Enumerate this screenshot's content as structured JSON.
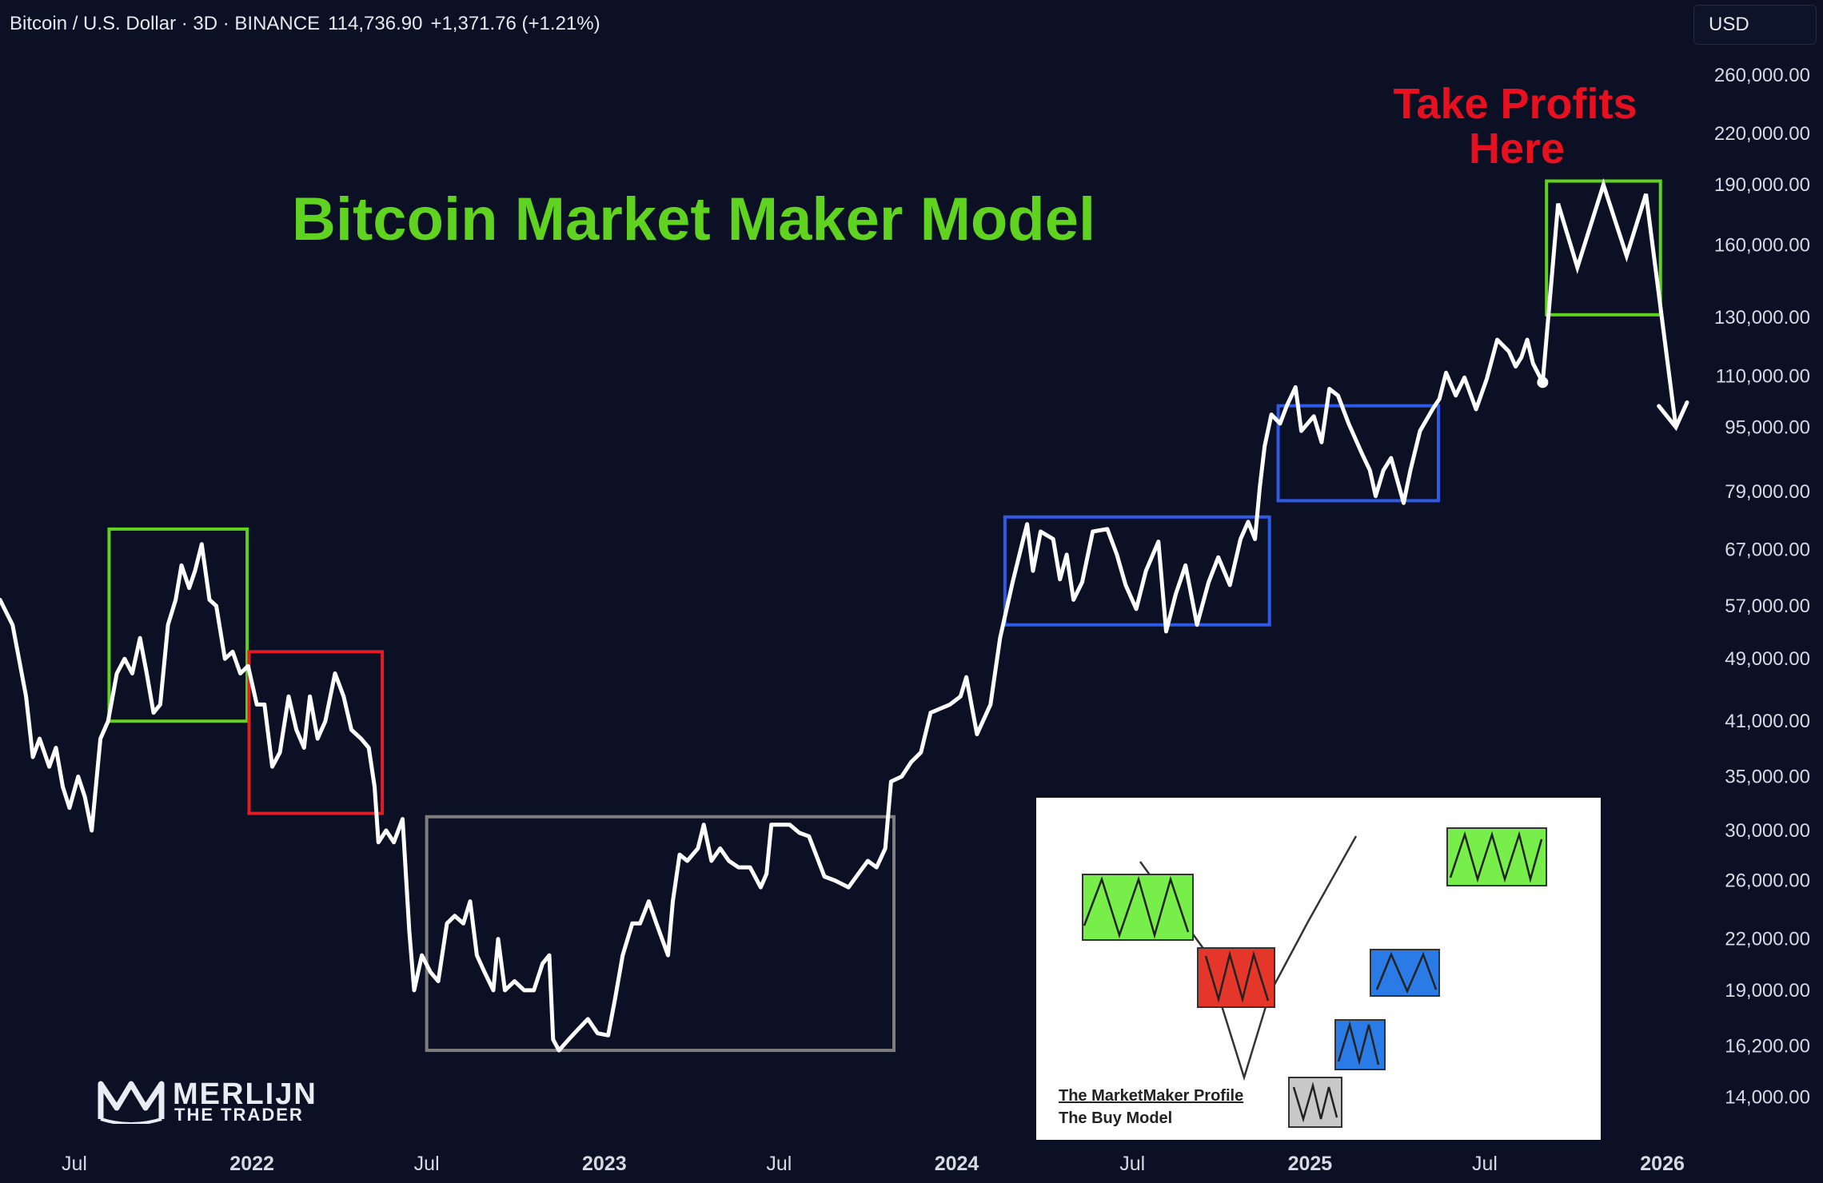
{
  "header": {
    "symbol": "Bitcoin / U.S. Dollar · 3D · BINANCE",
    "price": "114,736.90",
    "change": "+1,371.76 (+1.21%)"
  },
  "currency_button": "USD",
  "logo": {
    "line1": "MERLIJN",
    "line2": "THE TRADER",
    "icon": "merlijn-logo-icon"
  },
  "inset": {
    "caption1": "The MarketMaker Profile",
    "caption2": "The Buy Model"
  },
  "chart_data": {
    "type": "line",
    "title": "Bitcoin Market Maker Model",
    "y_scale": "log",
    "ylim": [
      12000,
      290000
    ],
    "xlim": [
      "2021-04-15",
      "2026-01-15"
    ],
    "y_ticks": [
      {
        "value": 260000,
        "label": "260,000.00"
      },
      {
        "value": 220000,
        "label": "220,000.00"
      },
      {
        "value": 190000,
        "label": "190,000.00"
      },
      {
        "value": 160000,
        "label": "160,000.00"
      },
      {
        "value": 130000,
        "label": "130,000.00"
      },
      {
        "value": 110000,
        "label": "110,000.00"
      },
      {
        "value": 95000,
        "label": "95,000.00"
      },
      {
        "value": 79000,
        "label": "79,000.00"
      },
      {
        "value": 67000,
        "label": "67,000.00"
      },
      {
        "value": 57000,
        "label": "57,000.00"
      },
      {
        "value": 49000,
        "label": "49,000.00"
      },
      {
        "value": 41000,
        "label": "41,000.00"
      },
      {
        "value": 35000,
        "label": "35,000.00"
      },
      {
        "value": 30000,
        "label": "30,000.00"
      },
      {
        "value": 26000,
        "label": "26,000.00"
      },
      {
        "value": 22000,
        "label": "22,000.00"
      },
      {
        "value": 19000,
        "label": "19,000.00"
      },
      {
        "value": 16200,
        "label": "16,200.00"
      },
      {
        "value": 14000,
        "label": "14,000.00"
      }
    ],
    "x_ticks": [
      {
        "value": "2021-07-01",
        "label": "Jul"
      },
      {
        "value": "2022-01-01",
        "label": "2022"
      },
      {
        "value": "2022-07-01",
        "label": "Jul"
      },
      {
        "value": "2023-01-01",
        "label": "2023"
      },
      {
        "value": "2023-07-01",
        "label": "Jul"
      },
      {
        "value": "2024-01-01",
        "label": "2024"
      },
      {
        "value": "2024-07-01",
        "label": "Jul"
      },
      {
        "value": "2025-01-01",
        "label": "2025"
      },
      {
        "value": "2025-07-01",
        "label": "Jul"
      },
      {
        "value": "2026-01-01",
        "label": "2026"
      }
    ],
    "series": [
      {
        "color": "#ffffff",
        "points": [
          [
            "2021-04-15",
            58000
          ],
          [
            "2021-04-28",
            54000
          ],
          [
            "2021-05-12",
            44000
          ],
          [
            "2021-05-19",
            37000
          ],
          [
            "2021-05-26",
            39000
          ],
          [
            "2021-06-05",
            36000
          ],
          [
            "2021-06-12",
            38000
          ],
          [
            "2021-06-19",
            34000
          ],
          [
            "2021-06-26",
            32000
          ],
          [
            "2021-07-05",
            35000
          ],
          [
            "2021-07-12",
            33000
          ],
          [
            "2021-07-19",
            30000
          ],
          [
            "2021-07-28",
            39000
          ],
          [
            "2021-08-05",
            41000
          ],
          [
            "2021-08-14",
            47000
          ],
          [
            "2021-08-22",
            49000
          ],
          [
            "2021-08-30",
            47000
          ],
          [
            "2021-09-07",
            52000
          ],
          [
            "2021-09-14",
            47000
          ],
          [
            "2021-09-21",
            42000
          ],
          [
            "2021-09-28",
            43000
          ],
          [
            "2021-10-06",
            54000
          ],
          [
            "2021-10-14",
            58000
          ],
          [
            "2021-10-20",
            64000
          ],
          [
            "2021-10-28",
            60000
          ],
          [
            "2021-11-03",
            63000
          ],
          [
            "2021-11-10",
            68000
          ],
          [
            "2021-11-18",
            58000
          ],
          [
            "2021-11-25",
            57000
          ],
          [
            "2021-12-04",
            49000
          ],
          [
            "2021-12-12",
            50000
          ],
          [
            "2021-12-20",
            47000
          ],
          [
            "2021-12-28",
            48000
          ],
          [
            "2022-01-06",
            43000
          ],
          [
            "2022-01-14",
            43000
          ],
          [
            "2022-01-22",
            36000
          ],
          [
            "2022-01-30",
            37500
          ],
          [
            "2022-02-08",
            44000
          ],
          [
            "2022-02-16",
            40000
          ],
          [
            "2022-02-24",
            38000
          ],
          [
            "2022-03-02",
            44000
          ],
          [
            "2022-03-10",
            39000
          ],
          [
            "2022-03-18",
            41000
          ],
          [
            "2022-03-28",
            47000
          ],
          [
            "2022-04-06",
            44000
          ],
          [
            "2022-04-14",
            40000
          ],
          [
            "2022-04-24",
            39000
          ],
          [
            "2022-05-02",
            38000
          ],
          [
            "2022-05-08",
            34000
          ],
          [
            "2022-05-12",
            29000
          ],
          [
            "2022-05-20",
            30000
          ],
          [
            "2022-05-28",
            29000
          ],
          [
            "2022-06-06",
            31000
          ],
          [
            "2022-06-13",
            22500
          ],
          [
            "2022-06-18",
            19000
          ],
          [
            "2022-06-26",
            21000
          ],
          [
            "2022-07-05",
            20000
          ],
          [
            "2022-07-13",
            19500
          ],
          [
            "2022-07-22",
            23000
          ],
          [
            "2022-07-30",
            23500
          ],
          [
            "2022-08-08",
            23000
          ],
          [
            "2022-08-15",
            24500
          ],
          [
            "2022-08-22",
            21000
          ],
          [
            "2022-08-30",
            20000
          ],
          [
            "2022-09-08",
            19000
          ],
          [
            "2022-09-13",
            22000
          ],
          [
            "2022-09-20",
            19000
          ],
          [
            "2022-09-30",
            19500
          ],
          [
            "2022-10-10",
            19000
          ],
          [
            "2022-10-20",
            19000
          ],
          [
            "2022-10-29",
            20500
          ],
          [
            "2022-11-05",
            21000
          ],
          [
            "2022-11-09",
            16500
          ],
          [
            "2022-11-15",
            16000
          ],
          [
            "2022-11-25",
            16500
          ],
          [
            "2022-12-05",
            17000
          ],
          [
            "2022-12-15",
            17500
          ],
          [
            "2022-12-25",
            16800
          ],
          [
            "2023-01-05",
            16700
          ],
          [
            "2023-01-12",
            18500
          ],
          [
            "2023-01-20",
            21000
          ],
          [
            "2023-01-30",
            23000
          ],
          [
            "2023-02-07",
            23000
          ],
          [
            "2023-02-16",
            24500
          ],
          [
            "2023-02-24",
            23000
          ],
          [
            "2023-03-08",
            21000
          ],
          [
            "2023-03-13",
            24500
          ],
          [
            "2023-03-20",
            28000
          ],
          [
            "2023-03-28",
            27500
          ],
          [
            "2023-04-08",
            28500
          ],
          [
            "2023-04-14",
            30500
          ],
          [
            "2023-04-22",
            27500
          ],
          [
            "2023-05-01",
            28500
          ],
          [
            "2023-05-10",
            27500
          ],
          [
            "2023-05-20",
            27000
          ],
          [
            "2023-06-01",
            27000
          ],
          [
            "2023-06-12",
            25500
          ],
          [
            "2023-06-18",
            26500
          ],
          [
            "2023-06-23",
            30500
          ],
          [
            "2023-07-01",
            30500
          ],
          [
            "2023-07-12",
            30500
          ],
          [
            "2023-07-22",
            29800
          ],
          [
            "2023-08-01",
            29500
          ],
          [
            "2023-08-17",
            26300
          ],
          [
            "2023-08-28",
            26000
          ],
          [
            "2023-09-11",
            25500
          ],
          [
            "2023-09-21",
            26500
          ],
          [
            "2023-10-01",
            27500
          ],
          [
            "2023-10-10",
            27000
          ],
          [
            "2023-10-19",
            28500
          ],
          [
            "2023-10-25",
            34500
          ],
          [
            "2023-11-05",
            35000
          ],
          [
            "2023-11-15",
            36500
          ],
          [
            "2023-11-25",
            37500
          ],
          [
            "2023-12-05",
            42000
          ],
          [
            "2023-12-15",
            42500
          ],
          [
            "2023-12-25",
            43000
          ],
          [
            "2024-01-05",
            44000
          ],
          [
            "2024-01-11",
            46500
          ],
          [
            "2024-01-22",
            39500
          ],
          [
            "2024-02-05",
            43000
          ],
          [
            "2024-02-15",
            52000
          ],
          [
            "2024-02-28",
            61000
          ],
          [
            "2024-03-10",
            69000
          ],
          [
            "2024-03-14",
            72000
          ],
          [
            "2024-03-20",
            63000
          ],
          [
            "2024-03-28",
            70500
          ],
          [
            "2024-04-10",
            69000
          ],
          [
            "2024-04-17",
            61500
          ],
          [
            "2024-04-24",
            66000
          ],
          [
            "2024-05-01",
            58000
          ],
          [
            "2024-05-10",
            61000
          ],
          [
            "2024-05-21",
            70500
          ],
          [
            "2024-06-05",
            71000
          ],
          [
            "2024-06-15",
            66000
          ],
          [
            "2024-06-24",
            60500
          ],
          [
            "2024-07-05",
            56500
          ],
          [
            "2024-07-15",
            63000
          ],
          [
            "2024-07-28",
            68500
          ],
          [
            "2024-08-05",
            53000
          ],
          [
            "2024-08-15",
            59000
          ],
          [
            "2024-08-25",
            64000
          ],
          [
            "2024-09-06",
            54000
          ],
          [
            "2024-09-18",
            61000
          ],
          [
            "2024-09-28",
            65500
          ],
          [
            "2024-10-10",
            60500
          ],
          [
            "2024-10-21",
            69000
          ],
          [
            "2024-10-29",
            72500
          ],
          [
            "2024-11-05",
            69000
          ],
          [
            "2024-11-10",
            80000
          ],
          [
            "2024-11-15",
            90000
          ],
          [
            "2024-11-22",
            98500
          ],
          [
            "2024-12-01",
            96000
          ],
          [
            "2024-12-08",
            101000
          ],
          [
            "2024-12-17",
            106500
          ],
          [
            "2024-12-23",
            94000
          ],
          [
            "2025-01-05",
            98000
          ],
          [
            "2025-01-13",
            91000
          ],
          [
            "2025-01-21",
            106000
          ],
          [
            "2025-01-30",
            104000
          ],
          [
            "2025-02-10",
            96000
          ],
          [
            "2025-02-24",
            88000
          ],
          [
            "2025-03-04",
            84000
          ],
          [
            "2025-03-10",
            78000
          ],
          [
            "2025-03-18",
            84000
          ],
          [
            "2025-03-26",
            87000
          ],
          [
            "2025-04-08",
            76500
          ],
          [
            "2025-04-15",
            84000
          ],
          [
            "2025-04-25",
            94000
          ],
          [
            "2025-05-08",
            100000
          ],
          [
            "2025-05-15",
            103000
          ],
          [
            "2025-05-22",
            111000
          ],
          [
            "2025-06-01",
            104000
          ],
          [
            "2025-06-10",
            109500
          ],
          [
            "2025-06-22",
            100000
          ],
          [
            "2025-07-03",
            109000
          ],
          [
            "2025-07-14",
            122000
          ],
          [
            "2025-07-26",
            118000
          ],
          [
            "2025-08-02",
            113000
          ],
          [
            "2025-08-08",
            116000
          ],
          [
            "2025-08-14",
            122000
          ],
          [
            "2025-08-20",
            114000
          ],
          [
            "2025-08-30",
            108000
          ]
        ]
      }
    ],
    "projection": [
      [
        "2025-08-30",
        108000
      ],
      [
        "2025-09-15",
        180000
      ],
      [
        "2025-10-05",
        150000
      ],
      [
        "2025-11-01",
        190000
      ],
      [
        "2025-11-25",
        155000
      ],
      [
        "2025-12-15",
        185000
      ],
      [
        "2026-01-15",
        95000
      ]
    ],
    "boxes": [
      {
        "color": "#5fd31f",
        "x0": "2021-08-06",
        "x1": "2021-12-27",
        "y0": 41000,
        "y1": 71000
      },
      {
        "color": "#e01c24",
        "x0": "2021-12-29",
        "x1": "2022-05-16",
        "y0": 31500,
        "y1": 50000
      },
      {
        "color": "#7d7d7d",
        "x0": "2022-07-01",
        "x1": "2023-10-28",
        "y0": 16000,
        "y1": 31200
      },
      {
        "color": "#2f5ae8",
        "x0": "2024-02-20",
        "x1": "2024-11-20",
        "y0": 54000,
        "y1": 73500
      },
      {
        "color": "#2f5ae8",
        "x0": "2024-11-29",
        "x1": "2025-05-14",
        "y0": 77000,
        "y1": 101000
      },
      {
        "color": "#5fd31f",
        "x0": "2025-09-03",
        "x1": "2025-12-30",
        "y0": 131000,
        "y1": 192000
      }
    ],
    "annotations": [
      {
        "text": "Take Profits",
        "color": "#e8101e"
      },
      {
        "text": "Here",
        "color": "#e8101e"
      }
    ]
  }
}
